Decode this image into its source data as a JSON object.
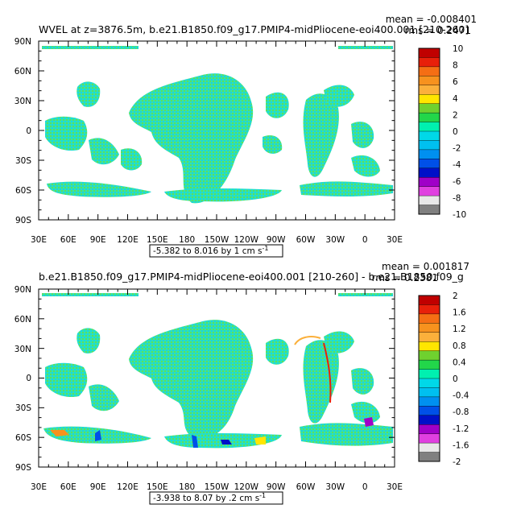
{
  "panels": [
    {
      "title": "WVEL at z=3876.5m, b.e21.B1850.f09_g17.PMIP4-midPliocene-eoi400.001 [210-260]",
      "stats_line1": "mean = -0.008401",
      "stats_line2": "rms = 0.2471",
      "caption": "-5.382 to 8.016 by 1 cm s",
      "caption_sup": "-1",
      "xticks": [
        "30E",
        "60E",
        "90E",
        "120E",
        "150E",
        "180",
        "150W",
        "120W",
        "90W",
        "60W",
        "30W",
        "0",
        "30E"
      ],
      "yticks": [
        "90N",
        "60N",
        "30N",
        "0",
        "30S",
        "60S",
        "90S"
      ],
      "colorbar_labels": [
        "10",
        "8",
        "6",
        "4",
        "2",
        "0",
        "-2",
        "-4",
        "-6",
        "-8",
        "-10"
      ]
    },
    {
      "title": "b.e21.B1850.f09_g17.PMIP4-midPliocene-eoi400.001 [210-260] - b.e21.B1850.f09_g",
      "stats_line1": "mean = 0.001817",
      "stats_line2": "rms = 0.2381",
      "caption": "-3.938 to 8.07 by .2 cm s",
      "caption_sup": "-1",
      "xticks": [
        "30E",
        "60E",
        "90E",
        "120E",
        "150E",
        "180",
        "150W",
        "120W",
        "90W",
        "60W",
        "30W",
        "0",
        "30E"
      ],
      "yticks": [
        "90N",
        "60N",
        "30N",
        "0",
        "30S",
        "60S",
        "90S"
      ],
      "colorbar_labels": [
        "2",
        "1.6",
        "1.2",
        "0.8",
        "0.4",
        "0",
        "-0.4",
        "-0.8",
        "-1.2",
        "-1.6",
        "-2"
      ]
    }
  ],
  "colorbar_colors": [
    "#c00000",
    "#e8200a",
    "#f56e14",
    "#f7921e",
    "#fbb03b",
    "#ffe600",
    "#6fd12f",
    "#22d64a",
    "#00f0b0",
    "#00d8e8",
    "#00c0f0",
    "#0090f0",
    "#0050e8",
    "#0010c8",
    "#a000c8",
    "#e040e0",
    "#e8e8e8",
    "#808080"
  ],
  "chart_data": [
    {
      "type": "heatmap",
      "title": "WVEL at z=3876.5m, b.e21.B1850.f09_g17.PMIP4-midPliocene-eoi400.001 [210-260]",
      "xlabel": "",
      "ylabel": "",
      "xlim": [
        "30E",
        "30E"
      ],
      "ylim": [
        "90S",
        "90N"
      ],
      "value_range": [
        -5.382,
        8.016
      ],
      "contour_interval": 1,
      "units": "cm s-1",
      "mean": -0.008401,
      "rms": 0.2471,
      "colorbar_range": [
        -10,
        10
      ]
    },
    {
      "type": "heatmap",
      "title": "b.e21.B1850.f09_g17.PMIP4-midPliocene-eoi400.001 [210-260] - b.e21.B1850.f09_g",
      "xlabel": "",
      "ylabel": "",
      "xlim": [
        "30E",
        "30E"
      ],
      "ylim": [
        "90S",
        "90N"
      ],
      "value_range": [
        -3.938,
        8.07
      ],
      "contour_interval": 0.2,
      "units": "cm s-1",
      "mean": 0.001817,
      "rms": 0.2381,
      "colorbar_range": [
        -2,
        2
      ]
    }
  ]
}
